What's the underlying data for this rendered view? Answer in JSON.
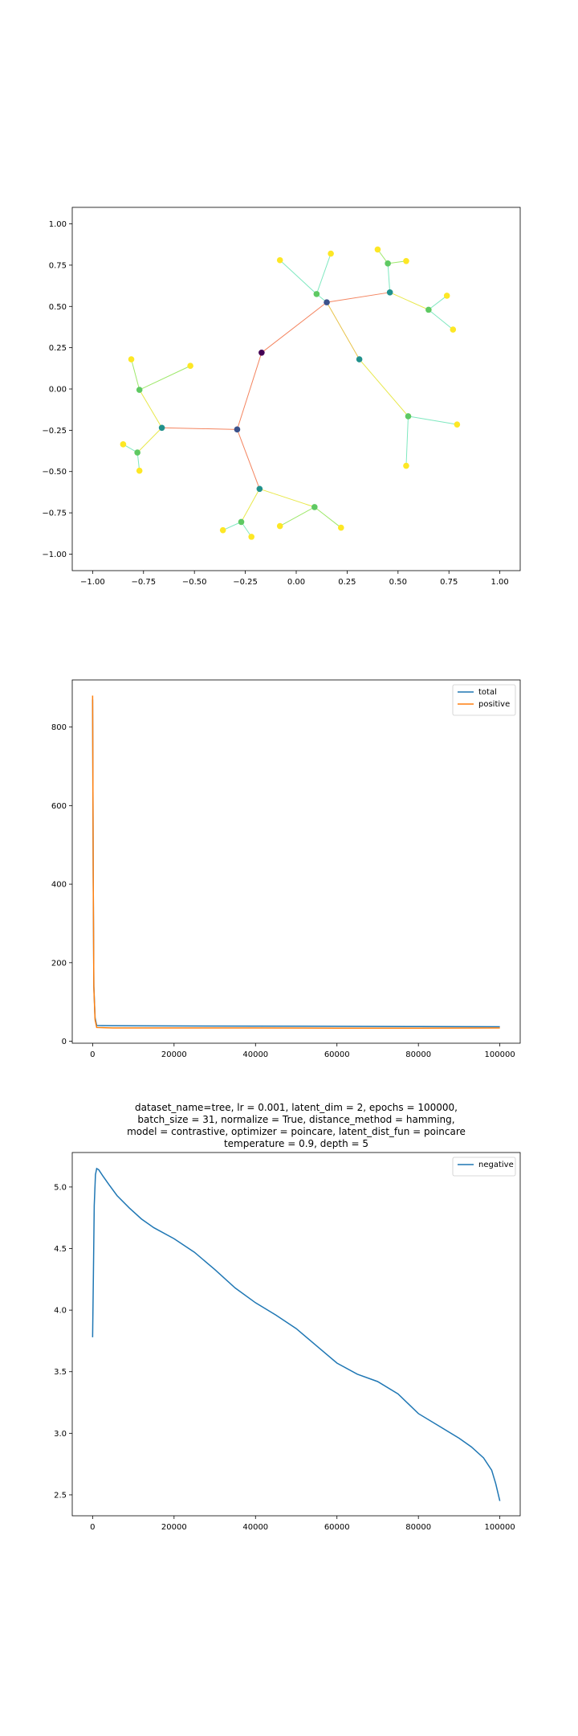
{
  "chart_data": [
    {
      "type": "scatter",
      "title": "",
      "xlabel": "",
      "ylabel": "",
      "xlim": [
        -1.1,
        1.1
      ],
      "ylim": [
        -1.1,
        1.1
      ],
      "xticks": [
        -1.0,
        -0.75,
        -0.5,
        -0.25,
        0.0,
        0.25,
        0.5,
        0.75,
        1.0
      ],
      "xtick_labels": [
        "−1.00",
        "−0.75",
        "−0.50",
        "−0.25",
        "0.00",
        "0.25",
        "0.50",
        "0.75",
        "1.00"
      ],
      "yticks": [
        1.0,
        0.75,
        0.5,
        0.25,
        0.0,
        -0.25,
        -0.5,
        -0.75,
        -1.0
      ],
      "ytick_labels": [
        "1.00",
        "0.75",
        "0.50",
        "0.25",
        "0.00",
        "−0.25",
        "−0.50",
        "−0.75",
        "−1.00"
      ],
      "grid": false,
      "nodes": [
        {
          "x": -0.17,
          "y": 0.22,
          "color": "#440154"
        },
        {
          "x": -0.29,
          "y": -0.245,
          "color": "#3b528b"
        },
        {
          "x": 0.15,
          "y": 0.525,
          "color": "#3b528b"
        },
        {
          "x": -0.66,
          "y": -0.235,
          "color": "#21918c"
        },
        {
          "x": -0.18,
          "y": -0.605,
          "color": "#21918c"
        },
        {
          "x": 0.31,
          "y": 0.18,
          "color": "#21918c"
        },
        {
          "x": 0.46,
          "y": 0.585,
          "color": "#21918c"
        },
        {
          "x": -0.77,
          "y": -0.005,
          "color": "#5ec962"
        },
        {
          "x": -0.78,
          "y": -0.385,
          "color": "#5ec962"
        },
        {
          "x": 0.1,
          "y": 0.575,
          "color": "#5ec962"
        },
        {
          "x": 0.45,
          "y": 0.76,
          "color": "#5ec962"
        },
        {
          "x": 0.65,
          "y": 0.48,
          "color": "#5ec962"
        },
        {
          "x": 0.55,
          "y": -0.165,
          "color": "#5ec962"
        },
        {
          "x": 0.09,
          "y": -0.715,
          "color": "#5ec962"
        },
        {
          "x": -0.27,
          "y": -0.805,
          "color": "#5ec962"
        },
        {
          "x": -0.81,
          "y": 0.18,
          "color": "#fde725"
        },
        {
          "x": -0.52,
          "y": 0.14,
          "color": "#fde725"
        },
        {
          "x": -0.85,
          "y": -0.335,
          "color": "#fde725"
        },
        {
          "x": -0.77,
          "y": -0.495,
          "color": "#fde725"
        },
        {
          "x": -0.08,
          "y": 0.78,
          "color": "#fde725"
        },
        {
          "x": 0.17,
          "y": 0.82,
          "color": "#fde725"
        },
        {
          "x": 0.4,
          "y": 0.845,
          "color": "#fde725"
        },
        {
          "x": 0.54,
          "y": 0.775,
          "color": "#fde725"
        },
        {
          "x": 0.74,
          "y": 0.565,
          "color": "#fde725"
        },
        {
          "x": 0.77,
          "y": 0.36,
          "color": "#fde725"
        },
        {
          "x": 0.79,
          "y": -0.215,
          "color": "#fde725"
        },
        {
          "x": 0.54,
          "y": -0.465,
          "color": "#fde725"
        },
        {
          "x": -0.08,
          "y": -0.83,
          "color": "#fde725"
        },
        {
          "x": 0.22,
          "y": -0.84,
          "color": "#fde725"
        },
        {
          "x": -0.36,
          "y": -0.855,
          "color": "#fde725"
        },
        {
          "x": -0.22,
          "y": -0.895,
          "color": "#fde725"
        }
      ],
      "edges": [
        {
          "from": 0,
          "to": 1,
          "color": "#f4845f"
        },
        {
          "from": 0,
          "to": 2,
          "color": "#f4845f"
        },
        {
          "from": 1,
          "to": 3,
          "color": "#f4845f"
        },
        {
          "from": 1,
          "to": 4,
          "color": "#f4845f"
        },
        {
          "from": 2,
          "to": 5,
          "color": "#e8c34a"
        },
        {
          "from": 2,
          "to": 6,
          "color": "#f4845f"
        },
        {
          "from": 3,
          "to": 7,
          "color": "#e8e84a"
        },
        {
          "from": 3,
          "to": 8,
          "color": "#e8e84a"
        },
        {
          "from": 2,
          "to": 9,
          "color": "#7fe8c0"
        },
        {
          "from": 6,
          "to": 10,
          "color": "#7fe8c0"
        },
        {
          "from": 6,
          "to": 11,
          "color": "#e8e84a"
        },
        {
          "from": 5,
          "to": 12,
          "color": "#e8e84a"
        },
        {
          "from": 4,
          "to": 13,
          "color": "#e8e84a"
        },
        {
          "from": 4,
          "to": 14,
          "color": "#e8e84a"
        },
        {
          "from": 7,
          "to": 15,
          "color": "#9ee86a"
        },
        {
          "from": 7,
          "to": 16,
          "color": "#9ee86a"
        },
        {
          "from": 8,
          "to": 17,
          "color": "#7fe8c0"
        },
        {
          "from": 8,
          "to": 18,
          "color": "#7fe8c0"
        },
        {
          "from": 9,
          "to": 19,
          "color": "#7fe8c0"
        },
        {
          "from": 9,
          "to": 20,
          "color": "#7fe8c0"
        },
        {
          "from": 10,
          "to": 21,
          "color": "#9ee86a"
        },
        {
          "from": 10,
          "to": 22,
          "color": "#9ee86a"
        },
        {
          "from": 11,
          "to": 23,
          "color": "#7fe8c0"
        },
        {
          "from": 11,
          "to": 24,
          "color": "#7fe8c0"
        },
        {
          "from": 12,
          "to": 25,
          "color": "#7fe8c0"
        },
        {
          "from": 12,
          "to": 26,
          "color": "#7fe8c0"
        },
        {
          "from": 13,
          "to": 27,
          "color": "#9ee86a"
        },
        {
          "from": 13,
          "to": 28,
          "color": "#9ee86a"
        },
        {
          "from": 14,
          "to": 29,
          "color": "#7fe8c0"
        },
        {
          "from": 14,
          "to": 30,
          "color": "#7fe8c0"
        }
      ]
    },
    {
      "type": "line",
      "title": "",
      "xlabel": "",
      "ylabel": "",
      "xlim": [
        -5000,
        105000
      ],
      "ylim": [
        -5,
        920
      ],
      "xticks": [
        0,
        20000,
        40000,
        60000,
        80000,
        100000
      ],
      "xtick_labels": [
        "0",
        "20000",
        "40000",
        "60000",
        "80000",
        "100000"
      ],
      "yticks": [
        0,
        200,
        400,
        600,
        800
      ],
      "ytick_labels": [
        "0",
        "200",
        "400",
        "600",
        "800"
      ],
      "grid": false,
      "legend_position": "top-right",
      "series": [
        {
          "name": "total",
          "color": "#1f77b4",
          "x": [
            0,
            150,
            300,
            600,
            1000,
            5000,
            20000,
            40000,
            60000,
            80000,
            100000
          ],
          "y": [
            870,
            420,
            140,
            60,
            40,
            39.5,
            39,
            38.5,
            38,
            37.5,
            37
          ]
        },
        {
          "name": "positive",
          "color": "#ff7f0e",
          "x": [
            0,
            150,
            300,
            600,
            1000,
            5000,
            20000,
            40000,
            60000,
            80000,
            100000
          ],
          "y": [
            880,
            425,
            138,
            55,
            35,
            34,
            34,
            33.8,
            33.5,
            33.5,
            34
          ]
        }
      ]
    },
    {
      "type": "line",
      "title_lines": [
        "dataset_name=tree, lr = 0.001, latent_dim = 2, epochs = 100000,",
        "batch_size = 31, normalize = True, distance_method = hamming,",
        "model = contrastive, optimizer = poincare, latent_dist_fun = poincare",
        "temperature = 0.9, depth = 5"
      ],
      "xlabel": "",
      "ylabel": "",
      "xlim": [
        -5000,
        105000
      ],
      "ylim": [
        2.33,
        5.28
      ],
      "xticks": [
        0,
        20000,
        40000,
        60000,
        80000,
        100000
      ],
      "xtick_labels": [
        "0",
        "20000",
        "40000",
        "60000",
        "80000",
        "100000"
      ],
      "yticks": [
        5.0,
        4.5,
        4.0,
        3.5,
        3.0,
        2.5
      ],
      "ytick_labels": [
        "5.0",
        "4.5",
        "4.0",
        "3.5",
        "3.0",
        "2.5"
      ],
      "grid": false,
      "legend_position": "top-right",
      "series": [
        {
          "name": "negative",
          "color": "#1f77b4",
          "x": [
            0,
            200,
            400,
            700,
            1000,
            1500,
            2500,
            4000,
            6000,
            9000,
            12000,
            15000,
            20000,
            25000,
            30000,
            35000,
            40000,
            45000,
            50000,
            55000,
            60000,
            65000,
            70000,
            75000,
            80000,
            85000,
            90000,
            93000,
            96000,
            98000,
            99000,
            100000
          ],
          "y": [
            3.78,
            4.3,
            4.85,
            5.1,
            5.15,
            5.14,
            5.09,
            5.02,
            4.93,
            4.83,
            4.74,
            4.67,
            4.58,
            4.47,
            4.33,
            4.18,
            4.06,
            3.96,
            3.85,
            3.71,
            3.57,
            3.48,
            3.42,
            3.32,
            3.16,
            3.06,
            2.96,
            2.89,
            2.8,
            2.7,
            2.59,
            2.45
          ]
        }
      ]
    }
  ]
}
